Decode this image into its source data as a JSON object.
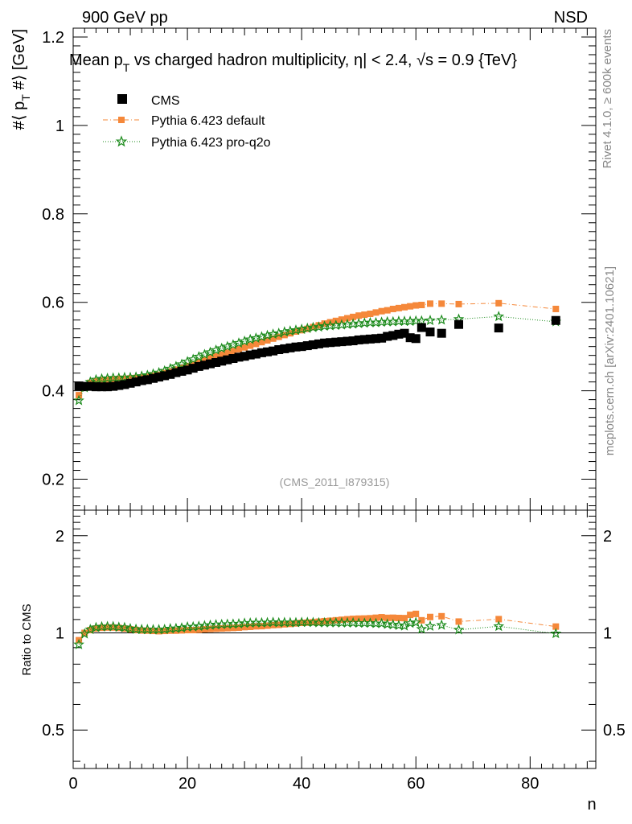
{
  "header": {
    "left": "900 GeV pp",
    "right": "NSD",
    "side_top": "Rivet 4.1.0, ≥ 600k events",
    "side_bottom": "mcplots.cern.ch [arXiv:2401.10621]"
  },
  "chart_data": [
    {
      "type": "scatter",
      "title": "Mean p_T vs charged hadron multiplicity, |η| < 2.4, √s = 0.9 {TeV}",
      "title_parts": {
        "a": "Mean p",
        "a_sub": "T",
        "b": " vs charged hadron multiplicity, ",
        "c": "η",
        "d": "| < 2.4, ",
        "e": "√s",
        "f": " = 0.9 {TeV}"
      },
      "ylabel": "#⟨ p_T #⟩ [GeV]",
      "ylabel_parts": {
        "a": "#⟨ p",
        "sub": "T",
        "b": " #⟩ [GeV]"
      },
      "xlabel": "n",
      "xlim": [
        0,
        91.5
      ],
      "ylim": [
        0.13,
        1.22
      ],
      "yticks": [
        0.2,
        0.4,
        0.6,
        0.8,
        1.0,
        1.2
      ],
      "ytick_labels": [
        "0.2",
        "0.4",
        "0.6",
        "0.8",
        "1",
        "1.2"
      ],
      "watermark": "(CMS_2011_I879315)",
      "legend": [
        {
          "name": "CMS",
          "color": "#000000",
          "marker": "square"
        },
        {
          "name": "Pythia 6.423 default",
          "color": "#f5883a",
          "marker": "square"
        },
        {
          "name": "Pythia 6.423 pro-q2o",
          "color": "#1a8a1a",
          "marker": "star"
        }
      ],
      "series": [
        {
          "name": "CMS",
          "x": [
            1,
            2,
            3,
            4,
            5,
            6,
            7,
            8,
            9,
            10,
            11,
            12,
            13,
            14,
            15,
            16,
            17,
            18,
            19,
            20,
            21,
            22,
            23,
            24,
            25,
            26,
            27,
            28,
            29,
            30,
            31,
            32,
            33,
            34,
            35,
            36,
            37,
            38,
            39,
            40,
            41,
            42,
            43,
            44,
            45,
            46,
            47,
            48,
            49,
            50,
            51,
            52,
            53,
            54,
            55,
            56,
            57,
            58,
            59,
            60,
            61,
            62.5,
            64.5,
            67.5,
            74.5,
            84.5
          ],
          "y": [
            0.411,
            0.41,
            0.41,
            0.409,
            0.409,
            0.409,
            0.41,
            0.412,
            0.414,
            0.417,
            0.42,
            0.423,
            0.425,
            0.428,
            0.431,
            0.434,
            0.437,
            0.441,
            0.444,
            0.447,
            0.451,
            0.455,
            0.458,
            0.461,
            0.464,
            0.467,
            0.47,
            0.473,
            0.476,
            0.478,
            0.481,
            0.483,
            0.486,
            0.488,
            0.49,
            0.493,
            0.495,
            0.497,
            0.499,
            0.5,
            0.502,
            0.504,
            0.506,
            0.508,
            0.509,
            0.51,
            0.511,
            0.512,
            0.513,
            0.515,
            0.516,
            0.517,
            0.518,
            0.519,
            0.523,
            0.525,
            0.528,
            0.53,
            0.52,
            0.518,
            0.543,
            0.533,
            0.53,
            0.55,
            0.542,
            0.559
          ]
        },
        {
          "name": "Pythia 6.423 default",
          "x": [
            1,
            2,
            3,
            4,
            5,
            6,
            7,
            8,
            9,
            10,
            11,
            12,
            13,
            14,
            15,
            16,
            17,
            18,
            19,
            20,
            21,
            22,
            23,
            24,
            25,
            26,
            27,
            28,
            29,
            30,
            31,
            32,
            33,
            34,
            35,
            36,
            37,
            38,
            39,
            40,
            41,
            42,
            43,
            44,
            45,
            46,
            47,
            48,
            49,
            50,
            51,
            52,
            53,
            54,
            55,
            56,
            57,
            58,
            59,
            60,
            61,
            62.5,
            64.5,
            67.5,
            74.5,
            84.5
          ],
          "y": [
            0.39,
            0.41,
            0.418,
            0.422,
            0.424,
            0.425,
            0.426,
            0.427,
            0.427,
            0.428,
            0.429,
            0.43,
            0.432,
            0.434,
            0.436,
            0.44,
            0.444,
            0.448,
            0.452,
            0.456,
            0.46,
            0.465,
            0.47,
            0.474,
            0.478,
            0.482,
            0.486,
            0.49,
            0.494,
            0.498,
            0.502,
            0.506,
            0.51,
            0.514,
            0.518,
            0.522,
            0.526,
            0.53,
            0.534,
            0.537,
            0.54,
            0.544,
            0.548,
            0.552,
            0.555,
            0.558,
            0.561,
            0.564,
            0.567,
            0.57,
            0.572,
            0.574,
            0.577,
            0.58,
            0.582,
            0.585,
            0.587,
            0.589,
            0.591,
            0.593,
            0.594,
            0.597,
            0.597,
            0.596,
            0.598,
            0.585
          ]
        },
        {
          "name": "Pythia 6.423 pro-q2o",
          "x": [
            1,
            2,
            3,
            4,
            5,
            6,
            7,
            8,
            9,
            10,
            11,
            12,
            13,
            14,
            15,
            16,
            17,
            18,
            19,
            20,
            21,
            22,
            23,
            24,
            25,
            26,
            27,
            28,
            29,
            30,
            31,
            32,
            33,
            34,
            35,
            36,
            37,
            38,
            39,
            40,
            41,
            42,
            43,
            44,
            45,
            46,
            47,
            48,
            49,
            50,
            51,
            52,
            53,
            54,
            55,
            56,
            57,
            58,
            59,
            60,
            61,
            62.5,
            64.5,
            67.5,
            74.5,
            84.5
          ],
          "y": [
            0.378,
            0.407,
            0.42,
            0.425,
            0.427,
            0.428,
            0.429,
            0.429,
            0.43,
            0.43,
            0.431,
            0.433,
            0.435,
            0.438,
            0.441,
            0.445,
            0.45,
            0.455,
            0.46,
            0.466,
            0.471,
            0.477,
            0.482,
            0.487,
            0.492,
            0.496,
            0.5,
            0.504,
            0.508,
            0.512,
            0.516,
            0.519,
            0.522,
            0.525,
            0.528,
            0.53,
            0.533,
            0.535,
            0.537,
            0.539,
            0.541,
            0.543,
            0.544,
            0.546,
            0.547,
            0.548,
            0.549,
            0.55,
            0.551,
            0.552,
            0.553,
            0.554,
            0.554,
            0.555,
            0.556,
            0.556,
            0.557,
            0.557,
            0.557,
            0.558,
            0.558,
            0.559,
            0.56,
            0.562,
            0.568,
            0.556
          ]
        }
      ]
    },
    {
      "type": "scatter",
      "ylabel": "Ratio to CMS",
      "xlabel": "n",
      "xlim": [
        0,
        91.5
      ],
      "ylim": [
        0.38,
        2.4
      ],
      "y_scale": "log",
      "yticks": [
        0.5,
        1,
        2
      ],
      "ytick_labels": [
        "0.5",
        "1",
        "2"
      ],
      "xticks": [
        0,
        20,
        40,
        60,
        80
      ],
      "xtick_labels": [
        "0",
        "20",
        "40",
        "60",
        "80"
      ],
      "series": [
        {
          "name": "Pythia 6.423 default",
          "x": [
            1,
            2,
            3,
            4,
            5,
            6,
            7,
            8,
            9,
            10,
            11,
            12,
            13,
            14,
            15,
            16,
            17,
            18,
            19,
            20,
            21,
            22,
            23,
            24,
            25,
            26,
            27,
            28,
            29,
            30,
            31,
            32,
            33,
            34,
            35,
            36,
            37,
            38,
            39,
            40,
            41,
            42,
            43,
            44,
            45,
            46,
            47,
            48,
            49,
            50,
            51,
            52,
            53,
            54,
            55,
            56,
            57,
            58,
            59,
            60,
            61,
            62.5,
            64.5,
            67.5,
            74.5,
            84.5
          ],
          "y": [
            0.949,
            1.0,
            1.02,
            1.032,
            1.037,
            1.039,
            1.039,
            1.036,
            1.031,
            1.026,
            1.021,
            1.017,
            1.016,
            1.014,
            1.012,
            1.014,
            1.016,
            1.016,
            1.018,
            1.02,
            1.02,
            1.022,
            1.026,
            1.028,
            1.03,
            1.032,
            1.034,
            1.036,
            1.038,
            1.042,
            1.044,
            1.048,
            1.049,
            1.053,
            1.057,
            1.059,
            1.063,
            1.066,
            1.07,
            1.074,
            1.076,
            1.079,
            1.083,
            1.087,
            1.09,
            1.094,
            1.098,
            1.102,
            1.105,
            1.107,
            1.108,
            1.11,
            1.114,
            1.118,
            1.113,
            1.114,
            1.112,
            1.111,
            1.137,
            1.145,
            1.094,
            1.12,
            1.126,
            1.084,
            1.103,
            1.046
          ]
        },
        {
          "name": "Pythia 6.423 pro-q2o",
          "x": [
            1,
            2,
            3,
            4,
            5,
            6,
            7,
            8,
            9,
            10,
            11,
            12,
            13,
            14,
            15,
            16,
            17,
            18,
            19,
            20,
            21,
            22,
            23,
            24,
            25,
            26,
            27,
            28,
            29,
            30,
            31,
            32,
            33,
            34,
            35,
            36,
            37,
            38,
            39,
            40,
            41,
            42,
            43,
            44,
            45,
            46,
            47,
            48,
            49,
            50,
            51,
            52,
            53,
            54,
            55,
            56,
            57,
            58,
            59,
            60,
            61,
            62.5,
            64.5,
            67.5,
            74.5,
            84.5
          ],
          "y": [
            0.92,
            0.993,
            1.024,
            1.039,
            1.044,
            1.046,
            1.046,
            1.041,
            1.039,
            1.031,
            1.026,
            1.024,
            1.024,
            1.023,
            1.023,
            1.025,
            1.03,
            1.032,
            1.036,
            1.043,
            1.044,
            1.048,
            1.052,
            1.056,
            1.06,
            1.062,
            1.064,
            1.065,
            1.067,
            1.071,
            1.073,
            1.075,
            1.074,
            1.076,
            1.078,
            1.075,
            1.077,
            1.076,
            1.076,
            1.078,
            1.078,
            1.077,
            1.075,
            1.075,
            1.075,
            1.075,
            1.074,
            1.074,
            1.074,
            1.072,
            1.072,
            1.072,
            1.069,
            1.069,
            1.063,
            1.059,
            1.055,
            1.051,
            1.071,
            1.077,
            1.028,
            1.049,
            1.057,
            1.022,
            1.048,
            0.995
          ]
        }
      ]
    }
  ]
}
